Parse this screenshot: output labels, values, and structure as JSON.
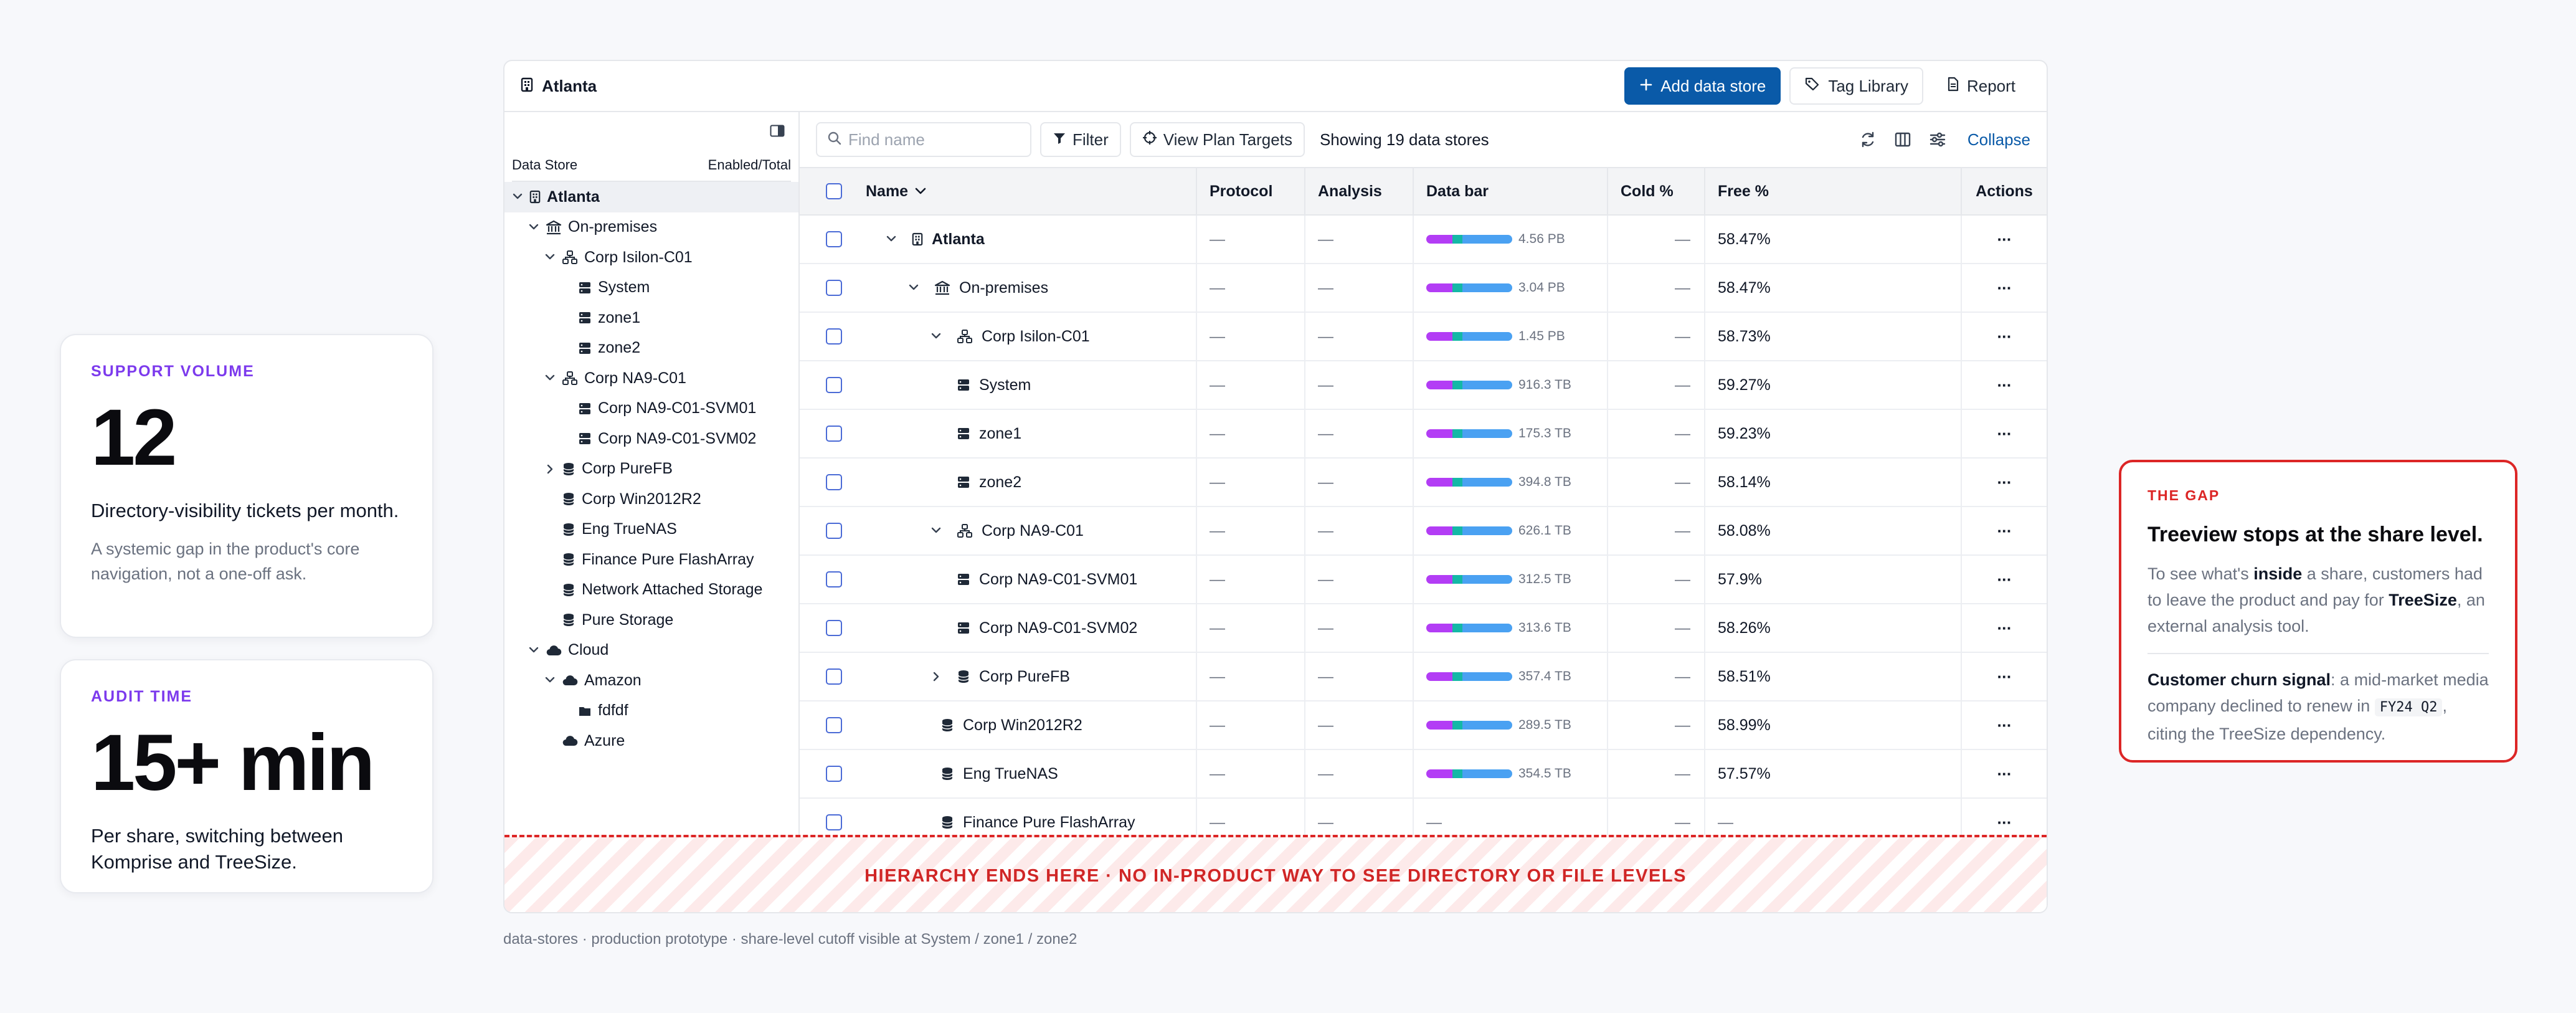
{
  "cards": [
    {
      "eyebrow": "SUPPORT VOLUME",
      "value": "12",
      "lead": "Directory-visibility tickets per month.",
      "muted": "A systemic gap in the product's core navigation, not a one-off ask."
    },
    {
      "eyebrow": "AUDIT TIME",
      "value": "15+ min",
      "lead": "Per share, switching between Komprise and TreeSize."
    }
  ],
  "window": {
    "title": "Atlanta",
    "add_label": "Add data store",
    "tag_label": "Tag Library",
    "report_label": "Report"
  },
  "sidebar": {
    "col_store": "Data Store",
    "col_enabled": "Enabled/Total",
    "items": [
      {
        "label": "Atlanta",
        "icon": "building-icon"
      },
      {
        "label": "On-premises",
        "icon": "bank-icon"
      },
      {
        "label": "Corp Isilon-C01",
        "icon": "cluster-icon"
      },
      {
        "label": "System",
        "icon": "server-icon"
      },
      {
        "label": "zone1",
        "icon": "server-icon"
      },
      {
        "label": "zone2",
        "icon": "server-icon"
      },
      {
        "label": "Corp NA9-C01",
        "icon": "cluster-icon"
      },
      {
        "label": "Corp NA9-C01-SVM01",
        "icon": "server-icon"
      },
      {
        "label": "Corp NA9-C01-SVM02",
        "icon": "server-icon"
      },
      {
        "label": "Corp PureFB",
        "icon": "database-icon"
      },
      {
        "label": "Corp Win2012R2",
        "icon": "database-icon"
      },
      {
        "label": "Eng TrueNAS",
        "icon": "database-icon"
      },
      {
        "label": "Finance Pure FlashArray",
        "icon": "database-icon"
      },
      {
        "label": "Network Attached Storage",
        "icon": "database-icon"
      },
      {
        "label": "Pure Storage",
        "icon": "database-icon"
      },
      {
        "label": "Cloud",
        "icon": "cloud-icon"
      },
      {
        "label": "Amazon",
        "icon": "cloud-icon"
      },
      {
        "label": "fdfdf",
        "icon": "folder-icon"
      },
      {
        "label": "Azure",
        "icon": "cloud-icon"
      }
    ]
  },
  "toolbar": {
    "search_placeholder": "Find name",
    "filter_label": "Filter",
    "plan_label": "View Plan Targets",
    "showing": "Showing 19 data stores",
    "collapse_label": "Collapse"
  },
  "table": {
    "headers": {
      "name": "Name",
      "protocol": "Protocol",
      "analysis": "Analysis",
      "bar": "Data bar",
      "cold": "Cold %",
      "free": "Free %",
      "actions": "Actions"
    },
    "dash": "—",
    "rows": [
      {
        "name": "Atlanta",
        "size": "4.56 PB",
        "free": "58.47%"
      },
      {
        "name": "On-premises",
        "size": "3.04 PB",
        "free": "58.47%"
      },
      {
        "name": "Corp Isilon-C01",
        "size": "1.45 PB",
        "free": "58.73%"
      },
      {
        "name": "System",
        "size": "916.3 TB",
        "free": "59.27%"
      },
      {
        "name": "zone1",
        "size": "175.3 TB",
        "free": "59.23%"
      },
      {
        "name": "zone2",
        "size": "394.8 TB",
        "free": "58.14%"
      },
      {
        "name": "Corp NA9-C01",
        "size": "626.1 TB",
        "free": "58.08%"
      },
      {
        "name": "Corp NA9-C01-SVM01",
        "size": "312.5 TB",
        "free": "57.9%"
      },
      {
        "name": "Corp NA9-C01-SVM02",
        "size": "313.6 TB",
        "free": "58.26%"
      },
      {
        "name": "Corp PureFB",
        "size": "357.4 TB",
        "free": "58.51%"
      },
      {
        "name": "Corp Win2012R2",
        "size": "289.5 TB",
        "free": "58.99%"
      },
      {
        "name": "Eng TrueNAS",
        "size": "354.5 TB",
        "free": "57.57%"
      },
      {
        "name": "Finance Pure FlashArray",
        "size": "",
        "free": "—"
      }
    ]
  },
  "cutoff_text": "HIERARCHY ENDS HERE · NO IN-PRODUCT WAY TO SEE DIRECTORY OR FILE LEVELS",
  "caption": "data-stores · production prototype · share-level cutoff visible at System / zone1 / zone2",
  "gap": {
    "eyebrow": "THE GAP",
    "heading": "Treeview stops at the share level.",
    "p1_a": "To see what's ",
    "p1_b": "inside",
    "p1_c": " a share, customers had to leave the product and pay for ",
    "p1_d": "TreeSize",
    "p1_e": ", an external analysis tool.",
    "p2_a": "Customer churn signal",
    "p2_b": ": a mid-market media company declined to renew in ",
    "p2_code": "FY24 Q2",
    "p2_c": ", citing the TreeSize dependency."
  },
  "colors": {
    "accent": "#0a5aa8",
    "violet": "#7c3aed",
    "alert": "#dc2626",
    "bar_a": "#b33df5",
    "bar_b": "#14b8a6",
    "bar_c": "#4aa1f2"
  }
}
